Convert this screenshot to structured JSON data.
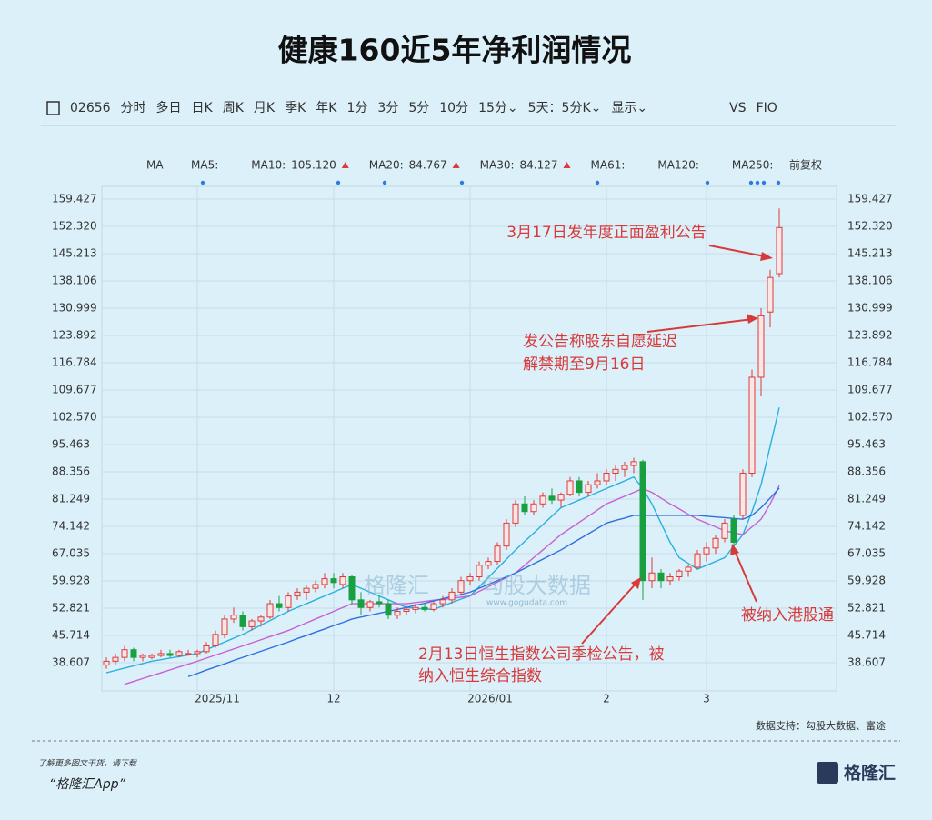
{
  "chart_data": {
    "type": "candlestick",
    "title": "健康160近5年净利润情况",
    "toolbar": [
      "02656",
      "分时",
      "多日",
      "日K",
      "周K",
      "月K",
      "季K",
      "年K",
      "1分",
      "3分",
      "5分",
      "10分",
      "15分⌄",
      "5天：5分K⌄",
      "显示⌄",
      "VS",
      "FIO"
    ],
    "ma_legend": [
      {
        "label": "MA5:",
        "color": "#e8c49a"
      },
      {
        "label": "MA10:",
        "value": "105.120",
        "color": "#1f9fd8"
      },
      {
        "label": "MA20:",
        "value": "84.767",
        "color": "#c040c8"
      },
      {
        "label": "MA30:",
        "value": "84.127",
        "color": "#1f5fd8"
      },
      {
        "label": "MA61:",
        "color": "#a8dcc0"
      },
      {
        "label": "MA120:",
        "color": "#e0b0c8"
      },
      {
        "label": "MA250:",
        "color": "#a8e4f4"
      }
    ],
    "ma_button": "MA",
    "adjust": "前复权",
    "annotations": [
      "3月17日发年度正面盈利公告",
      "发公告称股东自愿延迟",
      "解禁期至9月16日",
      "2月13日恒生指数公司季检公告，被",
      "纳入恒生综合指数",
      "被纳入港股通"
    ],
    "watermark": [
      "格隆汇",
      "勾股大数据",
      "www.gogudata.com"
    ],
    "source": "数据支持：勾股大数据、富途",
    "footer": [
      "了解更多图文干货，请下载",
      "“格隆汇App”"
    ],
    "logo": "格隆汇",
    "up_color": "#e03a3a",
    "down_color": "#18a040",
    "ylim": [
      31.27,
      162.74
    ],
    "yticks": [
      159.427,
      {
        "value": 152.32,
        "label": "152.320"
      },
      145.213,
      138.106,
      130.999,
      123.892,
      116.784,
      109.677,
      {
        "value": 102.57,
        "label": "102.570"
      },
      95.463,
      88.356,
      81.249,
      74.142,
      67.035,
      59.928,
      52.821,
      45.714,
      38.607
    ],
    "grid": true,
    "categories": [
      null,
      null,
      null,
      null,
      null,
      null,
      null,
      null,
      null,
      null,
      "2025/11",
      null,
      null,
      null,
      null,
      null,
      null,
      null,
      null,
      null,
      null,
      null,
      null,
      null,
      null,
      "12",
      null,
      null,
      null,
      null,
      null,
      null,
      null,
      null,
      null,
      null,
      null,
      null,
      null,
      null,
      "2026/01",
      null,
      null,
      null,
      null,
      null,
      null,
      null,
      null,
      null,
      null,
      null,
      null,
      null,
      null,
      "2",
      null,
      null,
      null,
      null,
      null,
      null,
      null,
      null,
      null,
      null,
      "3",
      null,
      null,
      null,
      null,
      null,
      null,
      null,
      null
    ],
    "ohlc": [
      [
        38,
        40,
        37,
        39
      ],
      [
        39,
        41,
        38,
        40
      ],
      [
        40,
        43,
        39,
        42
      ],
      [
        42,
        42.5,
        39,
        40
      ],
      [
        40,
        41,
        39,
        40.5
      ],
      [
        40,
        41,
        39.5,
        40.5
      ],
      [
        40.5,
        42,
        40,
        41
      ],
      [
        41,
        42,
        40,
        40.5
      ],
      [
        40.5,
        42,
        40,
        41.5
      ],
      [
        41,
        42,
        40.5,
        41
      ],
      [
        41,
        42,
        40,
        41.5
      ],
      [
        41.5,
        44,
        41,
        43
      ],
      [
        43,
        47,
        42.5,
        46
      ],
      [
        46,
        51,
        45,
        50
      ],
      [
        50,
        53,
        49,
        51
      ],
      [
        51,
        52,
        47,
        48
      ],
      [
        48,
        50,
        47,
        49.5
      ],
      [
        49.5,
        51,
        48,
        50.5
      ],
      [
        50.5,
        55,
        50,
        54
      ],
      [
        54,
        56,
        52,
        53
      ],
      [
        53,
        57,
        52,
        56
      ],
      [
        56,
        58,
        55,
        57
      ],
      [
        57,
        59,
        55,
        58
      ],
      [
        58,
        60,
        57,
        59
      ],
      [
        59,
        62,
        58,
        60.5
      ],
      [
        60.5,
        62,
        58,
        59.5
      ],
      [
        59,
        62,
        58,
        61
      ],
      [
        61,
        61.5,
        54,
        55
      ],
      [
        55,
        57,
        51,
        53
      ],
      [
        53,
        55,
        52,
        54.5
      ],
      [
        54.5,
        56,
        53,
        54
      ],
      [
        54,
        55,
        50,
        51
      ],
      [
        51,
        53,
        50,
        52
      ],
      [
        52,
        53.5,
        51,
        52.5
      ],
      [
        52.5,
        54,
        51.5,
        53
      ],
      [
        53,
        54,
        52,
        52.5
      ],
      [
        52.5,
        54.5,
        52,
        54
      ],
      [
        54,
        56,
        53,
        55
      ],
      [
        55,
        58,
        54,
        57
      ],
      [
        57,
        61,
        56,
        60
      ],
      [
        60,
        62,
        59,
        61
      ],
      [
        61,
        65,
        60,
        64
      ],
      [
        64,
        66,
        63,
        65
      ],
      [
        65,
        70,
        64,
        69
      ],
      [
        69,
        76,
        68,
        75
      ],
      [
        75,
        81,
        74,
        80
      ],
      [
        80,
        82,
        77,
        78
      ],
      [
        78,
        81,
        77,
        80
      ],
      [
        80,
        83,
        79,
        82
      ],
      [
        82,
        84,
        80,
        81
      ],
      [
        81,
        83,
        79,
        82.5
      ],
      [
        82.5,
        87,
        82,
        86
      ],
      [
        86,
        87,
        82,
        83
      ],
      [
        83,
        86,
        82,
        85
      ],
      [
        85,
        88,
        84,
        86
      ],
      [
        86,
        89,
        85,
        88
      ],
      [
        88,
        90,
        86,
        89
      ],
      [
        89,
        91,
        87,
        90
      ],
      [
        90,
        92,
        88,
        91
      ],
      [
        91,
        91.5,
        55,
        60
      ],
      [
        60,
        66,
        58,
        62
      ],
      [
        62,
        63,
        58,
        60
      ],
      [
        60,
        62,
        59,
        61
      ],
      [
        61,
        63,
        60,
        62.5
      ],
      [
        62.5,
        64,
        61,
        63.5
      ],
      [
        63.5,
        68,
        63,
        67
      ],
      [
        67,
        70,
        65,
        68.5
      ],
      [
        68.5,
        72,
        67,
        71
      ],
      [
        71,
        76,
        70,
        75
      ],
      [
        76,
        77,
        68,
        70
      ],
      [
        77,
        89,
        76,
        88
      ],
      [
        88,
        115,
        87,
        113
      ],
      [
        113,
        131,
        108,
        129
      ],
      [
        130,
        141,
        126,
        139
      ],
      [
        140,
        157,
        139,
        152
      ]
    ],
    "series": [
      {
        "name": "MA10",
        "color": "#28b0e0",
        "values": [
          36,
          36.6,
          37.2,
          37.8,
          38.4,
          39,
          39.4,
          39.8,
          40.2,
          40.6,
          41,
          42,
          43,
          44,
          45,
          46,
          47.2,
          48.4,
          49.6,
          50.8,
          52,
          53,
          54,
          55,
          56,
          57,
          58,
          59,
          58,
          57,
          56,
          55,
          54,
          53,
          52.8,
          52.6,
          52.5,
          53.4,
          54.3,
          55.2,
          56,
          58.4,
          60.8,
          63.2,
          65.6,
          68,
          70.2,
          72.4,
          74.6,
          76.8,
          79,
          80,
          81,
          82,
          83,
          84,
          85,
          86,
          87,
          84,
          80,
          75,
          70,
          66,
          64.5,
          63,
          64,
          65,
          66,
          69,
          72,
          78,
          85,
          95,
          105.12
        ]
      },
      {
        "name": "MA20",
        "color": "#c860d0",
        "values": [
          null,
          null,
          33,
          33.75,
          34.5,
          35.25,
          36,
          36.75,
          37.5,
          38.25,
          39,
          39.8,
          40.6,
          41.4,
          42.2,
          43,
          43.8,
          44.6,
          45.4,
          46.2,
          47,
          48,
          49,
          50,
          51,
          52,
          53,
          54,
          54,
          54,
          54,
          54,
          54,
          54,
          54.3,
          54.6,
          54.9,
          55.1,
          55.4,
          55.7,
          56,
          57.2,
          58.4,
          59.6,
          60.8,
          62,
          64,
          66,
          68,
          70,
          72,
          73.6,
          75.2,
          76.8,
          78.4,
          80,
          81,
          82,
          83,
          84,
          83,
          81.5,
          80,
          78.7,
          77.3,
          76,
          75,
          74,
          73,
          72.5,
          72,
          74,
          76,
          80,
          84.767
        ]
      },
      {
        "name": "MA30",
        "color": "#2e6fe0",
        "values": [
          null,
          null,
          null,
          null,
          null,
          null,
          null,
          null,
          null,
          35,
          35.8,
          36.7,
          37.5,
          38.3,
          39.2,
          40,
          40.8,
          41.6,
          42.4,
          43.2,
          44,
          44.9,
          45.7,
          46.6,
          47.4,
          48.3,
          49.1,
          50,
          50.5,
          51,
          51.5,
          52,
          52.5,
          53,
          53.6,
          54.1,
          54.7,
          55.3,
          55.9,
          56.4,
          57,
          58,
          59,
          60,
          61,
          62,
          63.2,
          64.4,
          65.6,
          66.8,
          68,
          69.4,
          70.8,
          72.2,
          73.6,
          75,
          75.7,
          76.3,
          77,
          77,
          77,
          77,
          77,
          77,
          77,
          77,
          76.8,
          76.6,
          76.4,
          76.2,
          76,
          77,
          79,
          81.5,
          84.127
        ]
      }
    ]
  }
}
